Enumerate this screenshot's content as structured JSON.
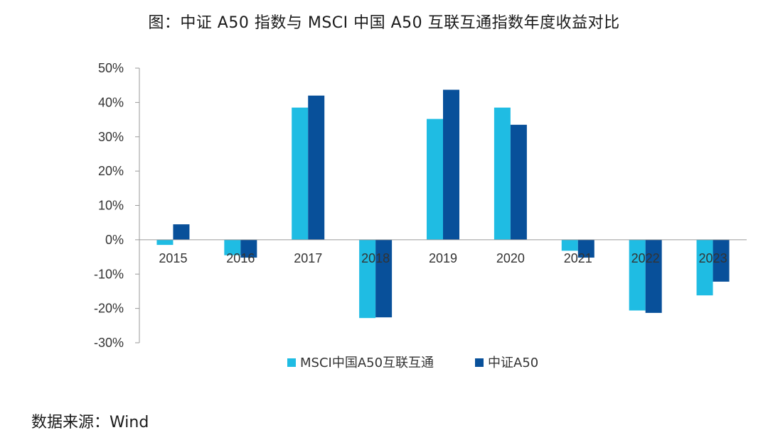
{
  "title": "图：中证 A50 指数与 MSCI 中国 A50 互联互通指数年度收益对比",
  "source": "数据来源：Wind",
  "colors": {
    "series1": "#1FBCE3",
    "series2": "#08509A",
    "axis": "#9a9a9a"
  },
  "chart_data": {
    "type": "bar",
    "categories": [
      "2015",
      "2016",
      "2017",
      "2018",
      "2019",
      "2020",
      "2021",
      "2022",
      "2023"
    ],
    "series": [
      {
        "name": "MSCI中国A50互联互通",
        "values": [
          -1.5,
          -4.5,
          38.5,
          -22.8,
          35.2,
          38.5,
          -3.2,
          -20.6,
          -16.2
        ]
      },
      {
        "name": "中证A50",
        "values": [
          4.5,
          -5.2,
          42.0,
          -22.6,
          43.7,
          33.5,
          -5.2,
          -21.3,
          -12.2
        ]
      }
    ],
    "yticks": [
      "50%",
      "40%",
      "30%",
      "20%",
      "10%",
      "0%",
      "-10%",
      "-20%",
      "-30%"
    ],
    "ylim": [
      -30,
      50
    ],
    "legend_position": "bottom",
    "grid": false
  }
}
